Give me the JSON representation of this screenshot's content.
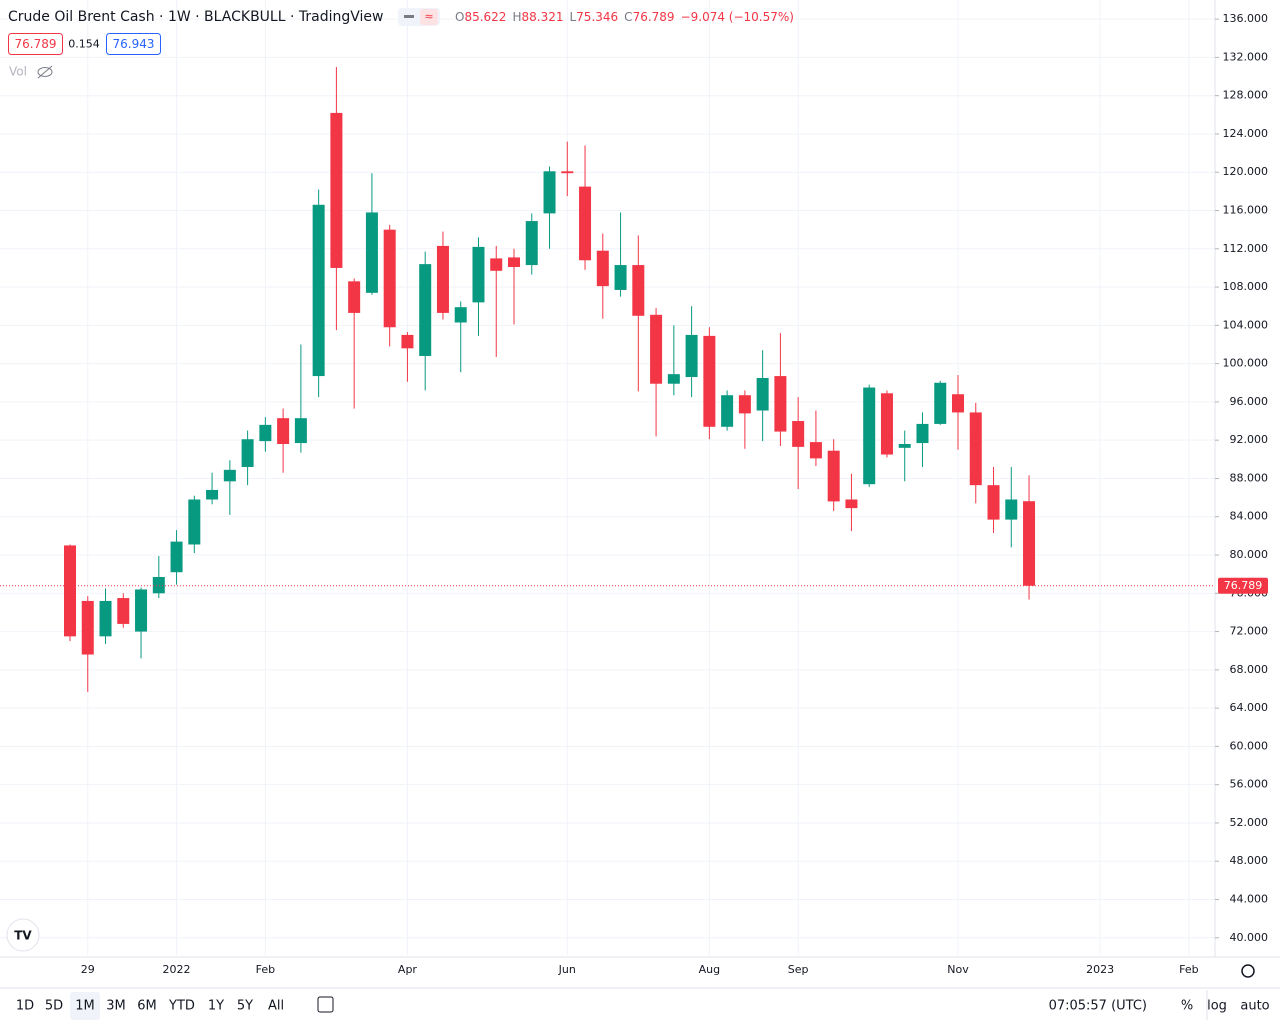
{
  "header": {
    "title": "Crude Oil Brent Cash · 1W · BLACKBULL · TradingView",
    "ohlc": [
      {
        "label": "O",
        "value": "85.622"
      },
      {
        "label": "H",
        "value": "88.321"
      },
      {
        "label": "L",
        "value": "75.346"
      },
      {
        "label": "C",
        "value": "76.789"
      }
    ],
    "change": "−9.074 (−10.57%)",
    "bid": "76.789",
    "spread": "0.154",
    "ask": "76.943",
    "volume_label": "Vol"
  },
  "chart_data": {
    "type": "candlestick",
    "categories": [
      null,
      "29",
      null,
      null,
      null,
      null,
      "2022",
      null,
      null,
      null,
      null,
      "Feb",
      null,
      null,
      null,
      null,
      null,
      null,
      null,
      "Apr",
      null,
      null,
      null,
      null,
      null,
      null,
      null,
      null,
      "Jun",
      null,
      null,
      null,
      null,
      null,
      null,
      null,
      "Aug",
      null,
      null,
      null,
      null,
      "Sep",
      null,
      null,
      null,
      null,
      null,
      null,
      null,
      null,
      "Nov",
      null,
      null,
      null,
      null,
      null,
      null,
      null,
      "2023",
      null,
      null,
      null,
      null,
      "Feb"
    ],
    "open": [
      81.0,
      75.2,
      71.5,
      75.5,
      72.0,
      76.0,
      78.2,
      81.1,
      85.8,
      87.7,
      89.2,
      91.9,
      94.3,
      91.7,
      98.7,
      126.2,
      108.6,
      107.4,
      114.0,
      103.0,
      100.8,
      112.3,
      104.3,
      106.4,
      111.0,
      111.1,
      110.3,
      115.7,
      120.1,
      118.5,
      111.8,
      107.7,
      110.3,
      105.1,
      97.9,
      98.6,
      102.9,
      93.4,
      96.7,
      95.1,
      98.7,
      94.0,
      91.8,
      90.9,
      85.8,
      87.4,
      96.9,
      91.2,
      91.7,
      93.7,
      96.8,
      94.9,
      87.3,
      83.7,
      85.622,
      null,
      null,
      null,
      null,
      null,
      null,
      null,
      null,
      null
    ],
    "high": [
      81.1,
      75.7,
      76.5,
      76.0,
      76.6,
      79.9,
      82.6,
      86.2,
      88.6,
      89.9,
      93.0,
      94.4,
      95.3,
      102.0,
      118.2,
      131.0,
      108.9,
      119.9,
      114.5,
      103.3,
      111.7,
      113.8,
      106.5,
      113.2,
      112.3,
      112.0,
      115.7,
      120.6,
      123.2,
      122.8,
      113.6,
      115.8,
      113.4,
      105.8,
      104.0,
      106.0,
      103.8,
      97.2,
      97.2,
      101.4,
      103.2,
      96.5,
      95.1,
      92.1,
      88.5,
      97.8,
      97.2,
      93.0,
      94.9,
      98.2,
      98.8,
      95.9,
      89.2,
      89.2,
      88.321,
      null,
      null,
      null,
      null,
      null,
      null,
      null,
      null,
      null
    ],
    "low": [
      71.0,
      65.7,
      70.7,
      72.4,
      69.2,
      75.5,
      76.9,
      80.2,
      85.3,
      84.2,
      87.3,
      90.8,
      88.6,
      90.7,
      96.5,
      103.5,
      95.3,
      107.2,
      101.8,
      98.1,
      97.2,
      104.6,
      99.1,
      102.9,
      100.7,
      104.1,
      109.3,
      112.0,
      117.5,
      109.8,
      104.7,
      107.0,
      97.1,
      92.4,
      96.7,
      96.5,
      92.1,
      93.0,
      91.1,
      91.9,
      91.4,
      86.9,
      89.3,
      84.6,
      82.5,
      87.1,
      90.2,
      87.7,
      89.2,
      93.6,
      91.0,
      85.4,
      82.3,
      80.8,
      75.346,
      null,
      null,
      null,
      null,
      null,
      null,
      null,
      null,
      null
    ],
    "close": [
      71.5,
      69.6,
      75.2,
      72.8,
      76.4,
      77.7,
      81.4,
      85.8,
      86.8,
      88.9,
      92.1,
      93.6,
      91.6,
      94.3,
      116.6,
      110.0,
      105.3,
      115.8,
      103.8,
      101.6,
      110.4,
      105.3,
      105.9,
      112.2,
      109.7,
      110.1,
      114.9,
      120.1,
      119.9,
      110.8,
      108.1,
      110.3,
      105.0,
      97.9,
      98.9,
      103.0,
      93.4,
      96.7,
      94.8,
      98.5,
      92.9,
      91.3,
      90.1,
      85.6,
      84.9,
      97.5,
      90.5,
      91.6,
      93.7,
      98.0,
      94.9,
      87.3,
      83.7,
      85.8,
      76.789,
      null,
      null,
      null,
      null,
      null,
      null,
      null,
      null,
      null
    ],
    "up_color": "#089981",
    "down_color": "#f23645",
    "last_price": 76.789,
    "ylim": [
      38.2,
      138
    ],
    "yticks": [
      {
        "value": 40,
        "label": "40.000"
      },
      {
        "value": 44,
        "label": "44.000"
      },
      {
        "value": 48,
        "label": "48.000"
      },
      {
        "value": 52,
        "label": "52.000"
      },
      {
        "value": 56,
        "label": "56.000"
      },
      {
        "value": 60,
        "label": "60.000"
      },
      {
        "value": 64,
        "label": "64.000"
      },
      {
        "value": 68,
        "label": "68.000"
      },
      {
        "value": 72,
        "label": "72.000"
      },
      {
        "value": 76,
        "label": "76.000"
      },
      {
        "value": 80,
        "label": "80.000"
      },
      {
        "value": 84,
        "label": "84.000"
      },
      {
        "value": 88,
        "label": "88.000"
      },
      {
        "value": 92,
        "label": "92.000"
      },
      {
        "value": 96,
        "label": "96.000"
      },
      {
        "value": 100,
        "label": "100.000"
      },
      {
        "value": 104,
        "label": "104.000"
      },
      {
        "value": 108,
        "label": "108.000"
      },
      {
        "value": 112,
        "label": "112.000"
      },
      {
        "value": 116,
        "label": "116.000"
      },
      {
        "value": 120,
        "label": "120.000"
      },
      {
        "value": 124,
        "label": "124.000"
      },
      {
        "value": 128,
        "label": "128.000"
      },
      {
        "value": 132,
        "label": "132.000"
      },
      {
        "value": 136,
        "label": "136.000"
      }
    ],
    "grid": true
  },
  "toolbar": {
    "ranges": [
      "1D",
      "5D",
      "1M",
      "3M",
      "6M",
      "YTD",
      "1Y",
      "5Y",
      "All"
    ],
    "time": "07:05:57 (UTC)",
    "options": [
      "%",
      "log",
      "auto"
    ]
  }
}
